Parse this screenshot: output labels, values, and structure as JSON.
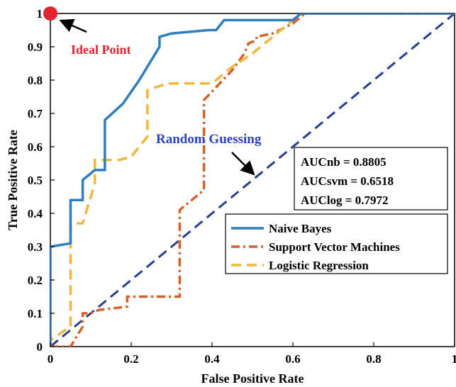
{
  "chart_data": {
    "type": "line",
    "xlabel": "False Positive Rate",
    "ylabel": "True Positive Rate",
    "xlim": [
      0,
      1
    ],
    "ylim": [
      0,
      1
    ],
    "xticks": [
      {
        "v": 0,
        "label": "0"
      },
      {
        "v": 0.2,
        "label": "0.2"
      },
      {
        "v": 0.4,
        "label": "0.4"
      },
      {
        "v": 0.6,
        "label": "0.6"
      },
      {
        "v": 0.8,
        "label": "0.8"
      },
      {
        "v": 1,
        "label": "1"
      }
    ],
    "yticks": [
      {
        "v": 0,
        "label": "0"
      },
      {
        "v": 0.1,
        "label": "0.1"
      },
      {
        "v": 0.2,
        "label": "0.2"
      },
      {
        "v": 0.3,
        "label": "0.3"
      },
      {
        "v": 0.4,
        "label": "0.4"
      },
      {
        "v": 0.5,
        "label": "0.5"
      },
      {
        "v": 0.6,
        "label": "0.6"
      },
      {
        "v": 0.7,
        "label": "0.7"
      },
      {
        "v": 0.8,
        "label": "0.8"
      },
      {
        "v": 0.9,
        "label": "0.9"
      },
      {
        "v": 1,
        "label": "1"
      }
    ],
    "grid": false,
    "legend_position": "bottom-right",
    "series": [
      {
        "name": "Naive Bayes",
        "color": "#2e7dbf",
        "style": "solid",
        "points": [
          [
            0,
            0
          ],
          [
            0,
            0.3
          ],
          [
            0.05,
            0.31
          ],
          [
            0.05,
            0.44
          ],
          [
            0.08,
            0.44
          ],
          [
            0.08,
            0.5
          ],
          [
            0.11,
            0.53
          ],
          [
            0.135,
            0.53
          ],
          [
            0.135,
            0.68
          ],
          [
            0.18,
            0.73
          ],
          [
            0.22,
            0.8
          ],
          [
            0.25,
            0.86
          ],
          [
            0.27,
            0.9
          ],
          [
            0.27,
            0.93
          ],
          [
            0.3,
            0.94
          ],
          [
            0.39,
            0.95
          ],
          [
            0.41,
            0.95
          ],
          [
            0.43,
            0.98
          ],
          [
            0.6,
            0.98
          ],
          [
            0.62,
            1
          ],
          [
            1,
            1
          ]
        ]
      },
      {
        "name": "Support Vector Machines",
        "color": "#d2622a",
        "style": "dashdot",
        "points": [
          [
            0,
            0
          ],
          [
            0.05,
            0
          ],
          [
            0.08,
            0.06
          ],
          [
            0.08,
            0.1
          ],
          [
            0.1,
            0.1
          ],
          [
            0.12,
            0.11
          ],
          [
            0.19,
            0.12
          ],
          [
            0.19,
            0.15
          ],
          [
            0.32,
            0.15
          ],
          [
            0.32,
            0.41
          ],
          [
            0.38,
            0.47
          ],
          [
            0.38,
            0.74
          ],
          [
            0.45,
            0.83
          ],
          [
            0.48,
            0.88
          ],
          [
            0.49,
            0.91
          ],
          [
            0.51,
            0.92
          ],
          [
            0.51,
            0.93
          ],
          [
            0.55,
            0.94
          ],
          [
            0.6,
            0.97
          ],
          [
            0.63,
            1
          ],
          [
            1,
            1
          ]
        ]
      },
      {
        "name": "Logistic Regression",
        "color": "#f2b73a",
        "style": "dashed",
        "points": [
          [
            0,
            0
          ],
          [
            0,
            0.02
          ],
          [
            0.05,
            0.06
          ],
          [
            0.05,
            0.37
          ],
          [
            0.08,
            0.37
          ],
          [
            0.11,
            0.49
          ],
          [
            0.11,
            0.56
          ],
          [
            0.14,
            0.56
          ],
          [
            0.17,
            0.56
          ],
          [
            0.2,
            0.57
          ],
          [
            0.24,
            0.63
          ],
          [
            0.24,
            0.77
          ],
          [
            0.29,
            0.79
          ],
          [
            0.4,
            0.79
          ],
          [
            0.45,
            0.84
          ],
          [
            0.5,
            0.88
          ],
          [
            0.55,
            0.93
          ],
          [
            0.6,
            0.98
          ],
          [
            0.62,
            1
          ],
          [
            1,
            1
          ]
        ]
      },
      {
        "name": "",
        "color": "#283e8e",
        "style": "dashed",
        "points": [
          [
            0,
            0
          ],
          [
            1,
            1
          ]
        ]
      }
    ],
    "annotations": {
      "ideal_point": {
        "label": "Ideal Point",
        "color": "#e3232f",
        "x": 0,
        "y": 1
      },
      "random_guessing": {
        "label": "Random Guessing",
        "color": "#2d43b8"
      },
      "auc": [
        "AUCnb = 0.8805",
        "AUCsvm = 0.6518",
        "AUClog = 0.7972"
      ]
    }
  }
}
